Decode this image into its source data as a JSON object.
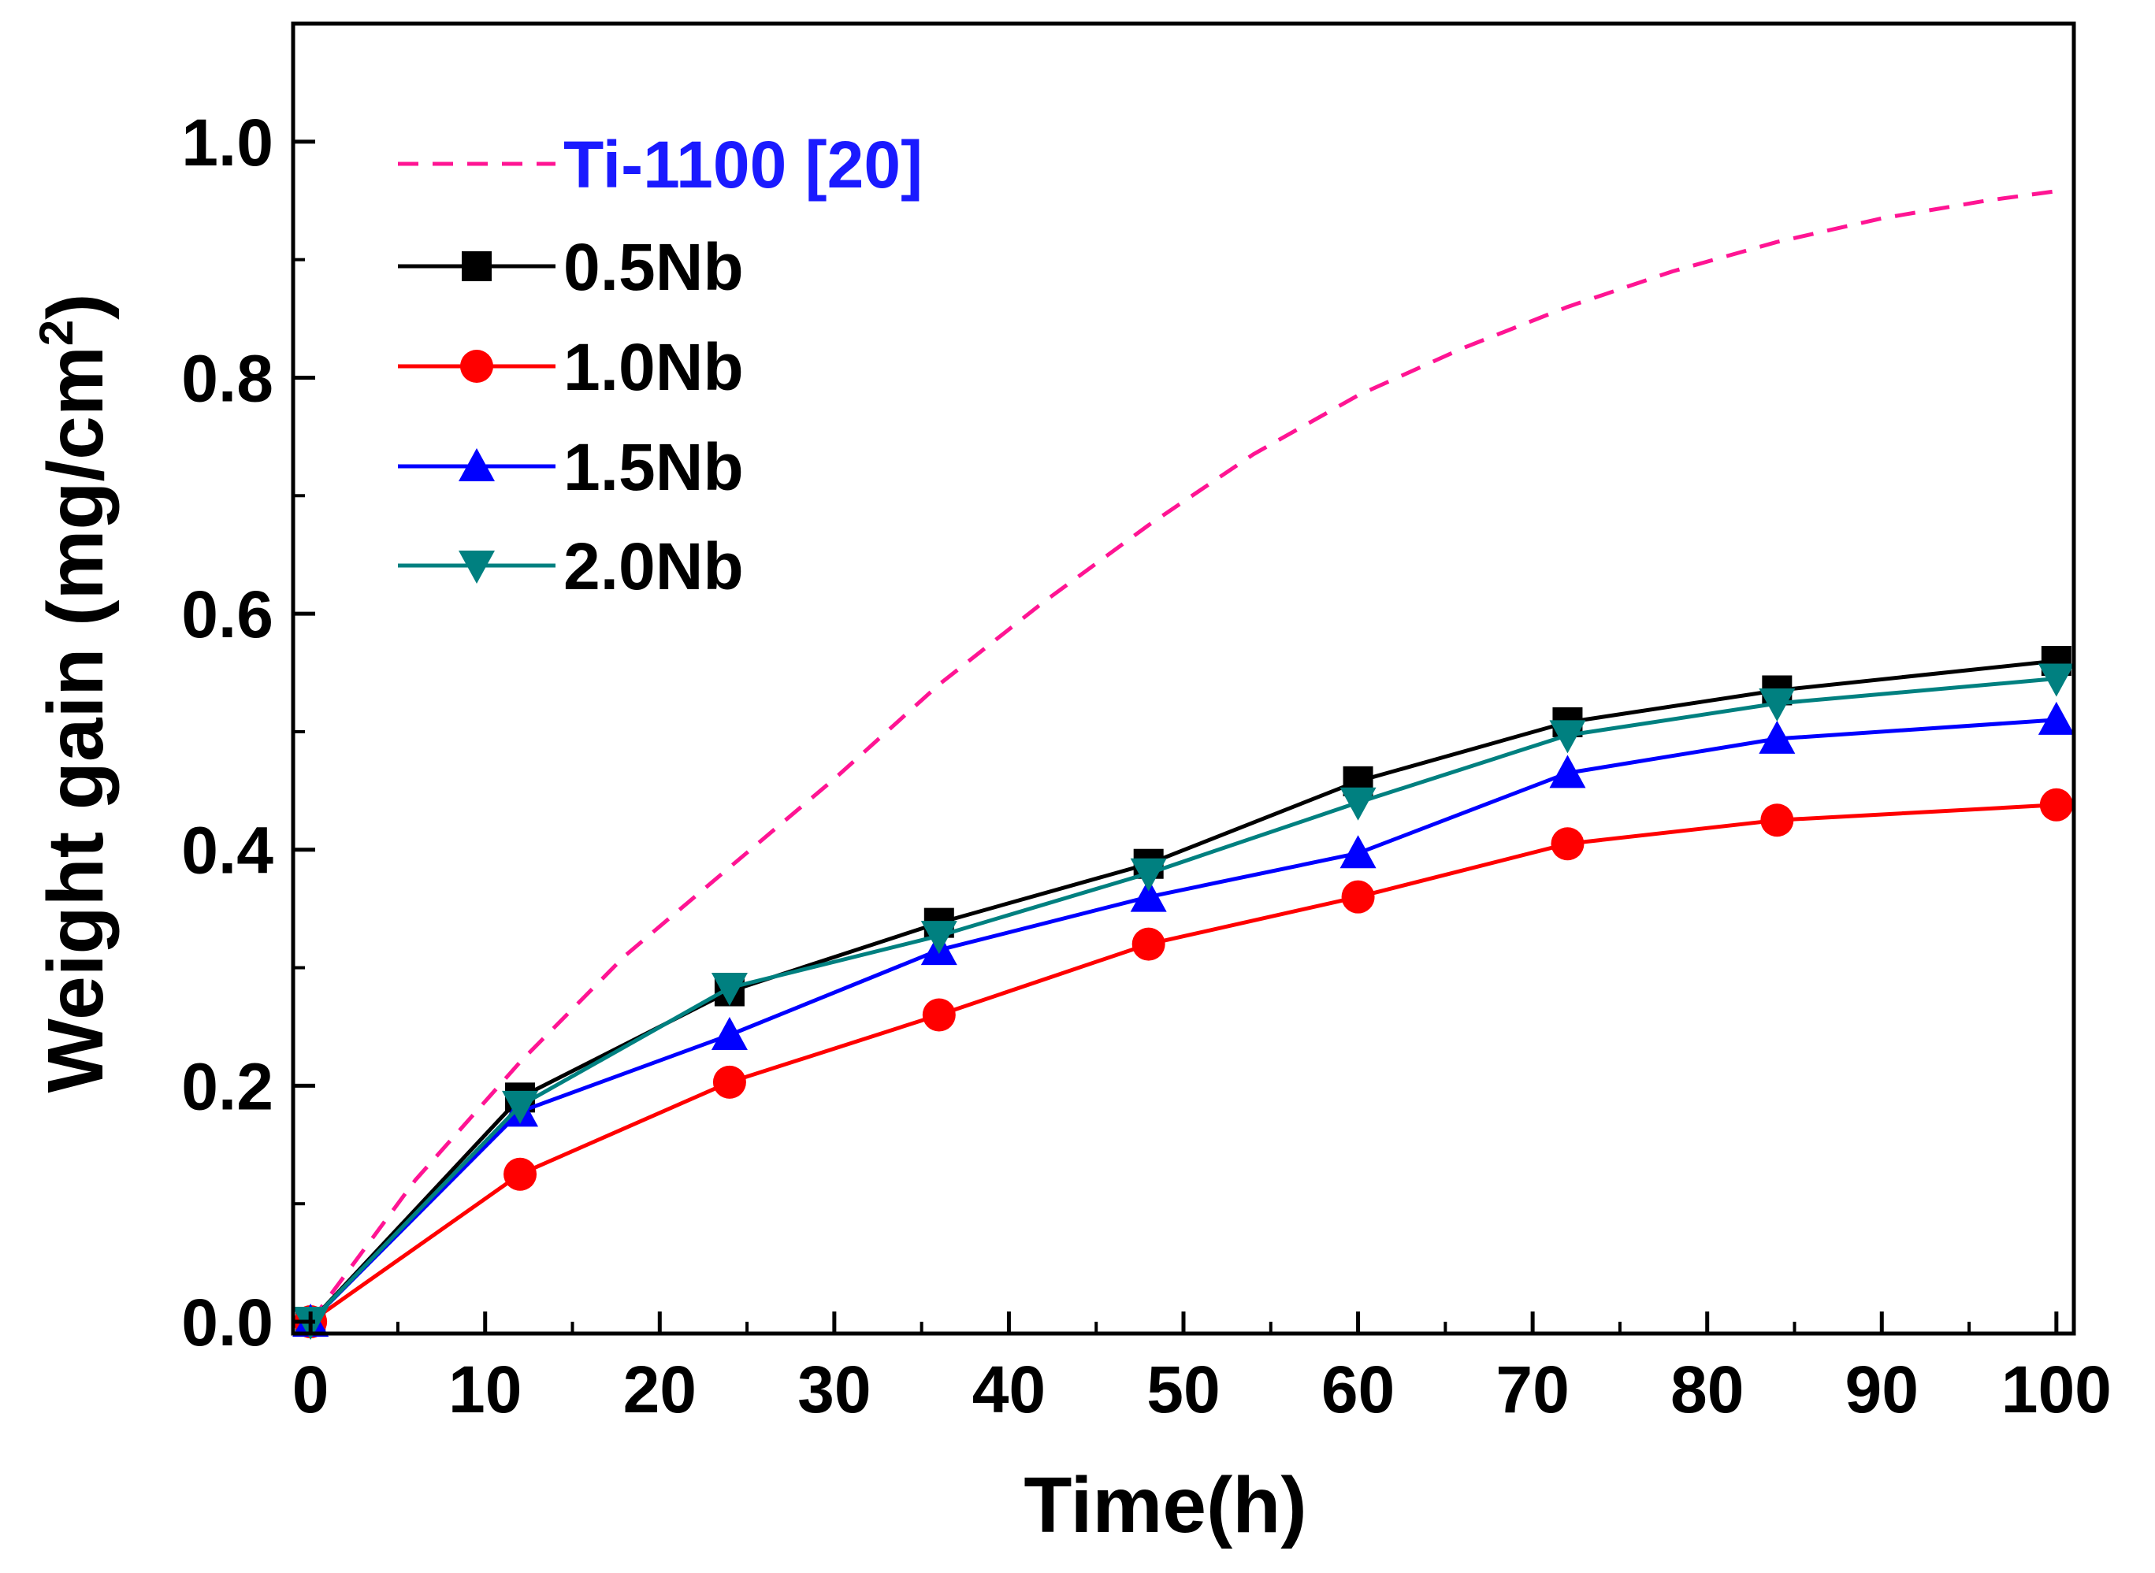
{
  "chart_data": {
    "type": "line",
    "title": "",
    "xlabel": "Time(h)",
    "ylabel": "Weight gain (mg/cm",
    "ylabel_sup": "2",
    "ylabel_close": ")",
    "xlim": [
      -1,
      101
    ],
    "ylim": [
      -0.01,
      1.1
    ],
    "xticks": [
      0,
      10,
      20,
      30,
      40,
      50,
      60,
      70,
      80,
      90,
      100
    ],
    "xtick_labels": [
      "0",
      "10",
      "20",
      "30",
      "40",
      "50",
      "60",
      "70",
      "80",
      "90",
      "100"
    ],
    "yticks": [
      0.0,
      0.2,
      0.4,
      0.6,
      0.8,
      1.0
    ],
    "ytick_labels": [
      "0.0",
      "0.2",
      "0.4",
      "0.6",
      "0.8",
      "1.0"
    ],
    "grid": false,
    "legend_position": "top-left",
    "series": [
      {
        "name": "Ti-1100 [20]",
        "color": "#ff1493",
        "label_color": "#1a1aff",
        "style": "dashed",
        "marker": "none",
        "x": [
          0,
          6,
          12,
          18,
          24,
          30,
          36,
          42,
          48,
          54,
          60,
          66,
          72,
          78,
          84,
          90,
          96,
          100
        ],
        "values": [
          0,
          0.12,
          0.22,
          0.31,
          0.385,
          0.46,
          0.54,
          0.61,
          0.675,
          0.735,
          0.785,
          0.825,
          0.86,
          0.89,
          0.915,
          0.935,
          0.95,
          0.958
        ]
      },
      {
        "name": "0.5Nb",
        "color": "#000000",
        "style": "solid",
        "marker": "square",
        "x": [
          0,
          12,
          24,
          36,
          48,
          60,
          72,
          84,
          100
        ],
        "values": [
          0,
          0.19,
          0.28,
          0.338,
          0.388,
          0.458,
          0.508,
          0.535,
          0.56
        ]
      },
      {
        "name": "1.0Nb",
        "color": "#ff0000",
        "style": "solid",
        "marker": "circle",
        "x": [
          0,
          12,
          24,
          36,
          48,
          60,
          72,
          84,
          100
        ],
        "values": [
          0,
          0.125,
          0.203,
          0.26,
          0.32,
          0.36,
          0.405,
          0.425,
          0.438
        ]
      },
      {
        "name": "1.5Nb",
        "color": "#0000ff",
        "style": "solid",
        "marker": "triangle-up",
        "x": [
          0,
          12,
          24,
          36,
          48,
          60,
          72,
          84,
          100
        ],
        "values": [
          0,
          0.178,
          0.243,
          0.315,
          0.36,
          0.397,
          0.465,
          0.494,
          0.51
        ]
      },
      {
        "name": "2.0Nb",
        "color": "#008080",
        "style": "solid",
        "marker": "triangle-down",
        "x": [
          0,
          12,
          24,
          36,
          48,
          60,
          72,
          84,
          100
        ],
        "values": [
          0,
          0.183,
          0.283,
          0.327,
          0.38,
          0.44,
          0.497,
          0.524,
          0.545
        ]
      }
    ]
  }
}
